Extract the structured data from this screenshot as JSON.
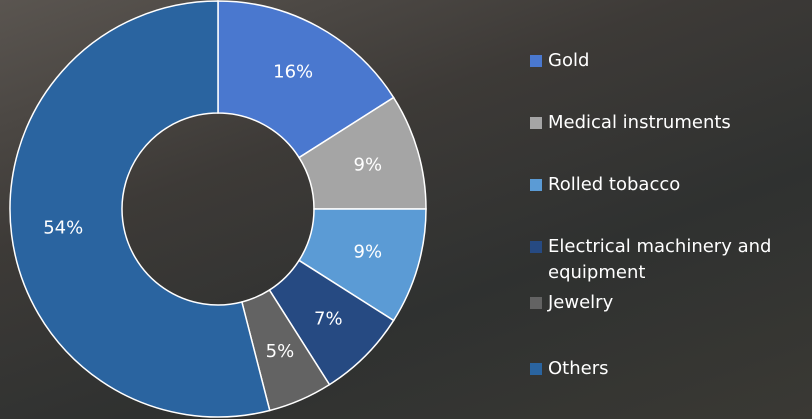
{
  "chart_data": {
    "type": "pie",
    "categories": [
      "Gold",
      "Medical instruments",
      "Rolled tobacco",
      "Electrical machinery and equipment",
      "Jewelry",
      "Others"
    ],
    "values": [
      16,
      9,
      9,
      7,
      5,
      54
    ],
    "value_labels": [
      "16%",
      "9%",
      "9%",
      "7%",
      "5%",
      "54%"
    ],
    "colors": [
      "#4a78cf",
      "#a5a5a5",
      "#5b9bd5",
      "#264a82",
      "#636363",
      "#2a64a0"
    ],
    "donut": true,
    "legend": "right"
  }
}
